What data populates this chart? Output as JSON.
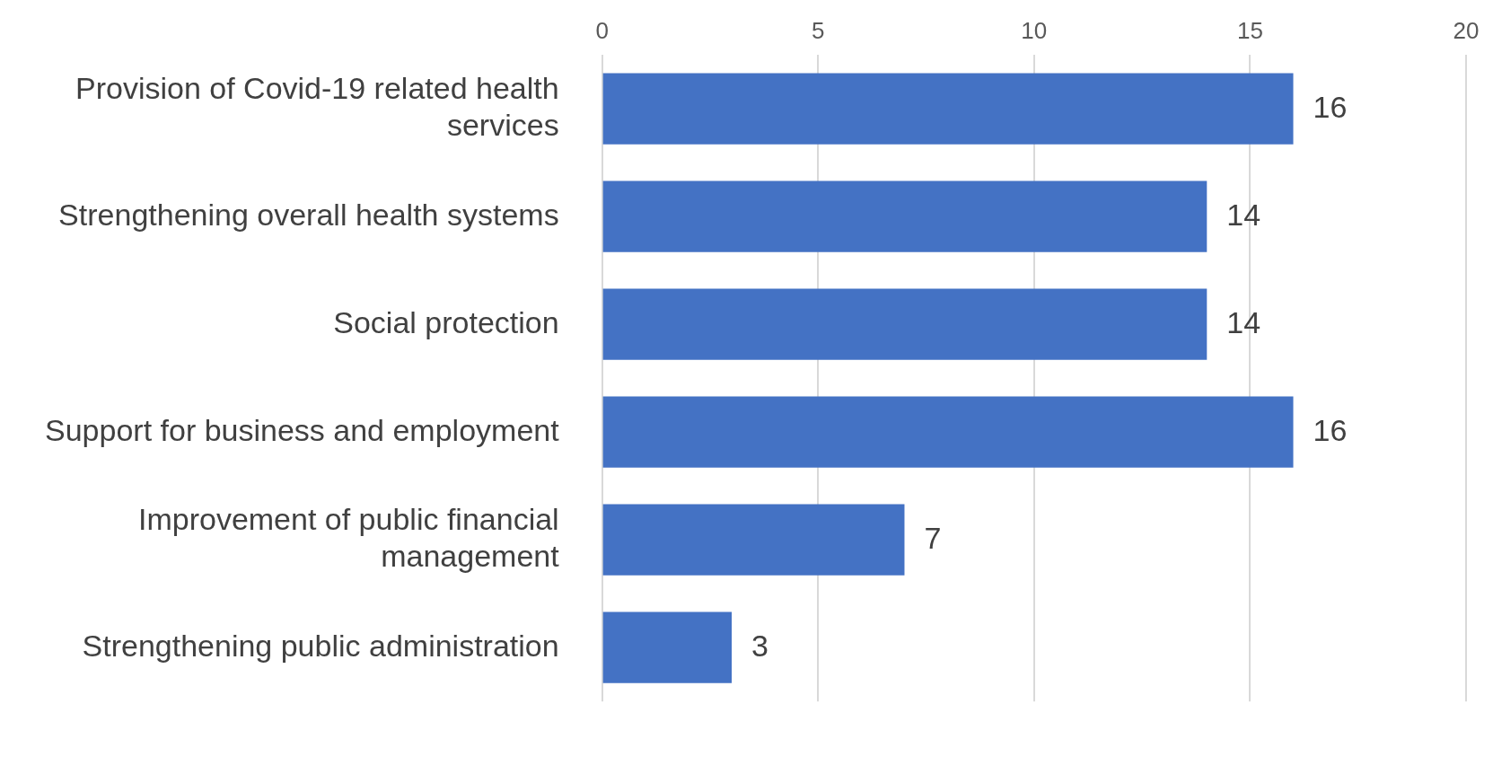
{
  "chart_data": {
    "type": "bar",
    "orientation": "horizontal",
    "categories": [
      "Provision of Covid-19 related health services",
      "Strengthening overall health systems",
      "Social protection",
      "Support for business and employment",
      "Improvement of public financial management",
      "Strengthening public administration"
    ],
    "values": [
      16,
      14,
      14,
      16,
      7,
      3
    ],
    "color": "#4472c4",
    "xlim": [
      0,
      20
    ],
    "xticks": [
      0,
      5,
      10,
      15,
      20
    ],
    "grid": "x",
    "data_labels": true,
    "legend": false
  }
}
